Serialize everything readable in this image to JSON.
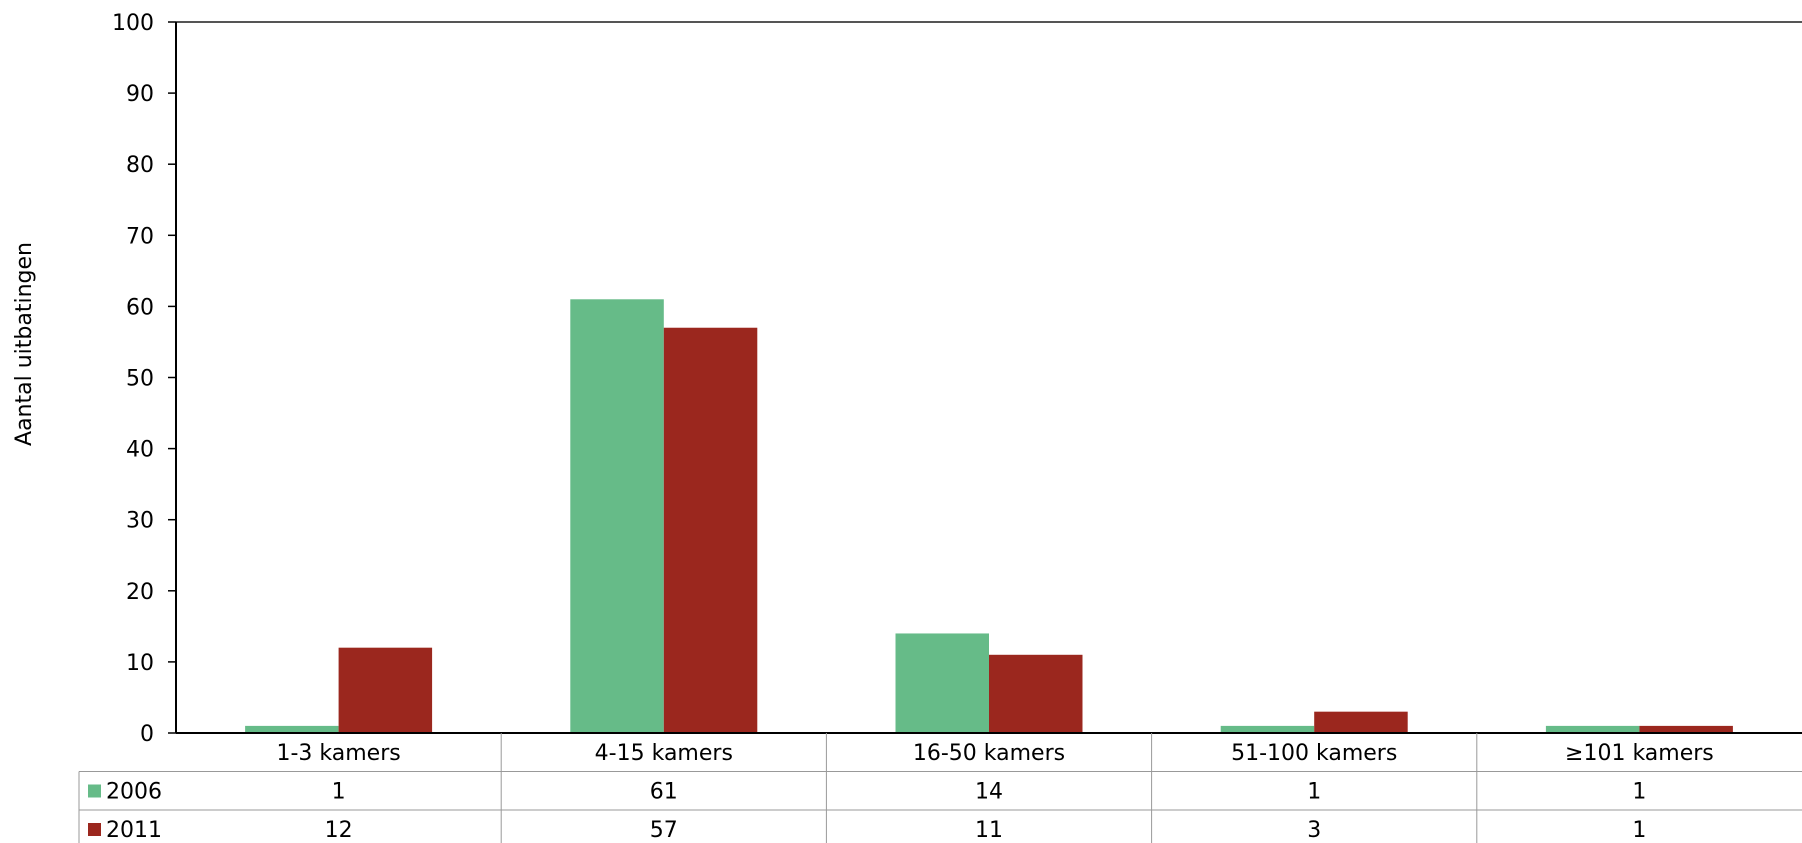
{
  "chart_data": {
    "type": "bar",
    "ylabel": "Aantal uitbatingen",
    "ylim": [
      0,
      100
    ],
    "yticks": [
      0,
      10,
      20,
      30,
      40,
      50,
      60,
      70,
      80,
      90,
      100
    ],
    "categories": [
      "1-3 kamers",
      "4-15 kamers",
      "16-50 kamers",
      "51-100 kamers",
      "≥101 kamers"
    ],
    "series": [
      {
        "name": "2006",
        "color": "#66bb88",
        "values": [
          1,
          61,
          14,
          1,
          1
        ]
      },
      {
        "name": "2011",
        "color": "#9b271e",
        "values": [
          12,
          57,
          11,
          3,
          1
        ]
      }
    ],
    "data_table": true,
    "grid": false
  }
}
